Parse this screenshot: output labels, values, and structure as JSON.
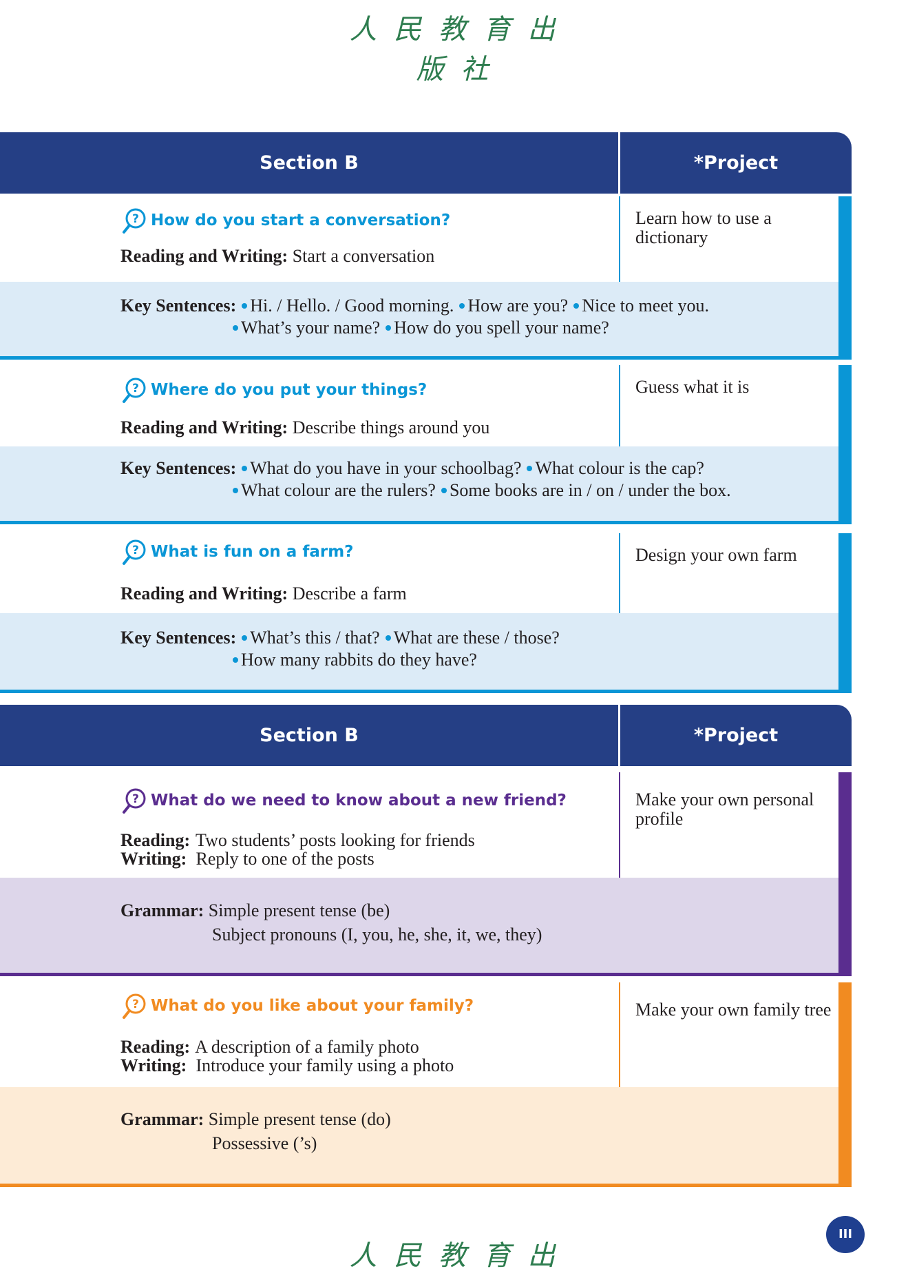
{
  "publisher_logo": "人民教育出版社",
  "colors": {
    "navy": "#253f85",
    "blue": "#0a96d6",
    "blue_band": "#dcebf7",
    "purple": "#5a2d8f",
    "purple_band": "#ddd6ea",
    "orange": "#f18b21",
    "orange_band": "#fdebd6"
  },
  "tables": [
    {
      "header": {
        "left": "Section B",
        "right": "*Project"
      },
      "units": [
        {
          "question": "How do you start a conversation?",
          "lines": [
            {
              "label": "Reading and Writing:",
              "text": "Start a conversation"
            }
          ],
          "project": "Learn how to use a dictionary",
          "band_label": "Key Sentences:",
          "band_lines": [
            [
              "Hi. / Hello. / Good morning.",
              "How are you?",
              "Nice to meet you."
            ],
            [
              "What’s your name?",
              "How do you spell your name?"
            ]
          ]
        },
        {
          "question": "Where do you put your things?",
          "lines": [
            {
              "label": "Reading and Writing:",
              "text": "Describe things around you"
            }
          ],
          "project": "Guess what it is",
          "band_label": "Key Sentences:",
          "band_lines": [
            [
              "What do you have in your schoolbag?",
              "What colour is the cap?"
            ],
            [
              "What colour are the rulers?",
              "Some books are in / on / under the box."
            ]
          ]
        },
        {
          "question": "What is fun on a farm?",
          "lines": [
            {
              "label": "Reading and Writing:",
              "text": "Describe a farm"
            }
          ],
          "project": "Design your own farm",
          "band_label": "Key Sentences:",
          "band_lines": [
            [
              "What’s this / that?",
              "What are these / those?"
            ],
            [
              "How many rabbits do they have?"
            ]
          ]
        }
      ]
    },
    {
      "header": {
        "left": "Section B",
        "right": "*Project"
      },
      "units": [
        {
          "question": "What do we need to know about a new friend?",
          "lines": [
            {
              "label": "Reading:",
              "text": "Two students’ posts looking for friends"
            },
            {
              "label": "Writing:",
              "text": "Reply to one of the posts"
            }
          ],
          "project": "Make your own personal profile",
          "band_label": "Grammar:",
          "band_lines": [
            [
              "Simple present tense (be)"
            ],
            [
              "Subject pronouns (I, you, he, she, it, we, they)"
            ]
          ]
        },
        {
          "question": "What do you like about your family?",
          "lines": [
            {
              "label": "Reading:",
              "text": "A description of a family photo"
            },
            {
              "label": "Writing:",
              "text": "Introduce your family using a photo"
            }
          ],
          "project": "Make your own family tree",
          "band_label": "Grammar:",
          "band_lines": [
            [
              "Simple present tense (do)"
            ],
            [
              "Possessive (’s)"
            ]
          ]
        }
      ]
    }
  ],
  "page_number": "III"
}
